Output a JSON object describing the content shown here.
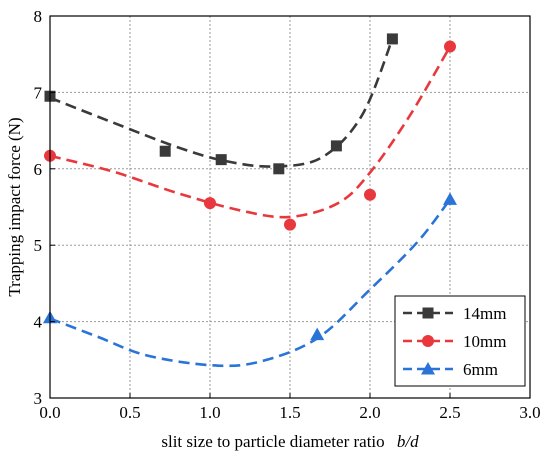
{
  "chart_data": {
    "type": "scatter",
    "xlabel": "slit size to particle diameter ratio",
    "xlabel_italic": "b/d",
    "ylabel": "Trapping impact force (N)",
    "xlim": [
      0,
      3.0
    ],
    "ylim": [
      3,
      8
    ],
    "xticks": [
      "0.0",
      "0.5",
      "1.0",
      "1.5",
      "2.0",
      "2.5",
      "3.0"
    ],
    "yticks": [
      "3",
      "4",
      "5",
      "6",
      "7",
      "8"
    ],
    "grid": true,
    "legend_position": "bottom-right",
    "series": [
      {
        "name": "14mm",
        "marker": "square",
        "color": "#3a3a3a",
        "x": [
          0.0,
          0.72,
          1.07,
          1.43,
          1.79,
          2.14
        ],
        "y": [
          6.95,
          6.23,
          6.12,
          6.0,
          6.3,
          7.7
        ],
        "fit": [
          [
            0.0,
            6.93
          ],
          [
            0.4,
            6.6
          ],
          [
            0.8,
            6.28
          ],
          [
            1.1,
            6.1
          ],
          [
            1.4,
            6.03
          ],
          [
            1.7,
            6.15
          ],
          [
            1.95,
            6.7
          ],
          [
            2.14,
            7.7
          ]
        ]
      },
      {
        "name": "10mm",
        "marker": "circle",
        "color": "#e8383d",
        "x": [
          0.0,
          1.0,
          1.5,
          2.0,
          2.5
        ],
        "y": [
          6.17,
          5.55,
          5.27,
          5.66,
          7.6
        ],
        "fit": [
          [
            0.0,
            6.17
          ],
          [
            0.4,
            5.96
          ],
          [
            0.8,
            5.68
          ],
          [
            1.2,
            5.45
          ],
          [
            1.5,
            5.37
          ],
          [
            1.8,
            5.55
          ],
          [
            2.0,
            5.95
          ],
          [
            2.25,
            6.7
          ],
          [
            2.5,
            7.6
          ]
        ]
      },
      {
        "name": "6mm",
        "marker": "triangle",
        "color": "#2a74d8",
        "x": [
          0.0,
          1.67,
          2.5
        ],
        "y": [
          4.05,
          3.83,
          5.6
        ],
        "fit": [
          [
            0.0,
            4.04
          ],
          [
            0.3,
            3.8
          ],
          [
            0.6,
            3.56
          ],
          [
            1.0,
            3.43
          ],
          [
            1.3,
            3.47
          ],
          [
            1.67,
            3.78
          ],
          [
            2.0,
            4.42
          ],
          [
            2.3,
            5.05
          ],
          [
            2.5,
            5.6
          ]
        ]
      }
    ]
  }
}
